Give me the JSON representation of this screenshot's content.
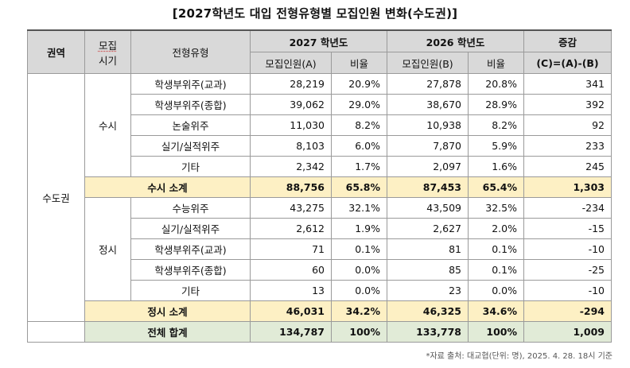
{
  "title": "[2027학년도 대입 전형유형별 모집인원 변화(수도권)]",
  "headers": {
    "region": "권역",
    "period_line1": "모집",
    "period_line2": "시기",
    "type": "전형유형",
    "year2027": "2027 학년도",
    "year2026": "2026 학년도",
    "change": "증감",
    "count_a": "모집인원(A)",
    "ratio_a": "비율",
    "count_b": "모집인원(B)",
    "ratio_b": "비율",
    "change_formula": "(C)=(A)-(B)"
  },
  "region": "수도권",
  "susi": {
    "label": "수시",
    "rows": [
      {
        "type": "학생부위주(교과)",
        "a": "28,219",
        "ra": "20.9%",
        "b": "27,878",
        "rb": "20.8%",
        "c": "341"
      },
      {
        "type": "학생부위주(종합)",
        "a": "39,062",
        "ra": "29.0%",
        "b": "38,670",
        "rb": "28.9%",
        "c": "392"
      },
      {
        "type": "논술위주",
        "a": "11,030",
        "ra": "8.2%",
        "b": "10,938",
        "rb": "8.2%",
        "c": "92"
      },
      {
        "type": "실기/실적위주",
        "a": "8,103",
        "ra": "6.0%",
        "b": "7,870",
        "rb": "5.9%",
        "c": "233"
      },
      {
        "type": "기타",
        "a": "2,342",
        "ra": "1.7%",
        "b": "2,097",
        "rb": "1.6%",
        "c": "245"
      }
    ],
    "subtotal": {
      "label": "수시 소계",
      "a": "88,756",
      "ra": "65.8%",
      "b": "87,453",
      "rb": "65.4%",
      "c": "1,303"
    }
  },
  "jeongsi": {
    "label": "정시",
    "rows": [
      {
        "type": "수능위주",
        "a": "43,275",
        "ra": "32.1%",
        "b": "43,509",
        "rb": "32.5%",
        "c": "-234"
      },
      {
        "type": "실기/실적위주",
        "a": "2,612",
        "ra": "1.9%",
        "b": "2,627",
        "rb": "2.0%",
        "c": "-15"
      },
      {
        "type": "학생부위주(교과)",
        "a": "71",
        "ra": "0.1%",
        "b": "81",
        "rb": "0.1%",
        "c": "-10"
      },
      {
        "type": "학생부위주(종합)",
        "a": "60",
        "ra": "0.0%",
        "b": "85",
        "rb": "0.1%",
        "c": "-25"
      },
      {
        "type": "기타",
        "a": "13",
        "ra": "0.0%",
        "b": "23",
        "rb": "0.0%",
        "c": "-10"
      }
    ],
    "subtotal": {
      "label": "정시 소계",
      "a": "46,031",
      "ra": "34.2%",
      "b": "46,325",
      "rb": "34.6%",
      "c": "-294"
    }
  },
  "total": {
    "label": "전체 합계",
    "a": "134,787",
    "ra": "100%",
    "b": "133,778",
    "rb": "100%",
    "c": "1,009"
  },
  "note": "*자료 출처: 대교협(단위: 명), 2025. 4. 28. 18시 기준",
  "colors": {
    "header_bg": "#d9d9d9",
    "subtotal_bg": "#fdf0c4",
    "total_bg": "#e1ebd7"
  }
}
